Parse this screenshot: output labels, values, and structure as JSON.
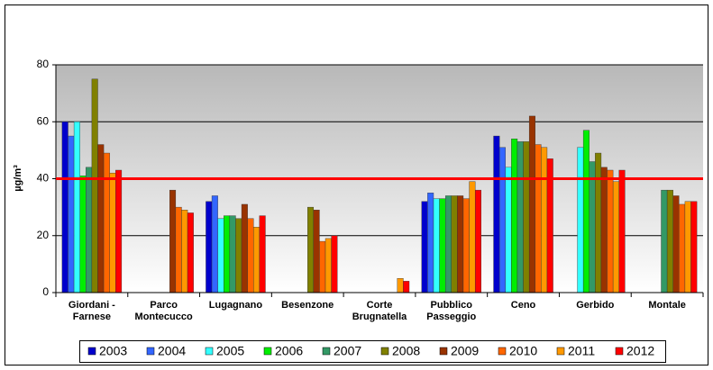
{
  "chart_data": {
    "type": "bar",
    "y_label": "µg/m³",
    "categories": [
      "Giordani -\nFarnese",
      "Parco\nMontecucco",
      "Lugagnano",
      "Besenzone",
      "Corte\nBrugnatella",
      "Pubblico\nPasseggio",
      "Ceno",
      "Gerbido",
      "Montale"
    ],
    "series": [
      {
        "name": "2003",
        "color": "#0000cc",
        "values": [
          60,
          null,
          32,
          null,
          null,
          32,
          55,
          null,
          null
        ]
      },
      {
        "name": "2004",
        "color": "#3366ff",
        "values": [
          55,
          null,
          34,
          null,
          null,
          35,
          51,
          null,
          null
        ]
      },
      {
        "name": "2005",
        "color": "#33ffff",
        "values": [
          60,
          null,
          26,
          null,
          null,
          33,
          44,
          51,
          null
        ]
      },
      {
        "name": "2006",
        "color": "#00ee00",
        "values": [
          41,
          null,
          27,
          null,
          null,
          33,
          54,
          57,
          null
        ]
      },
      {
        "name": "2007",
        "color": "#339966",
        "values": [
          44,
          null,
          27,
          null,
          null,
          34,
          53,
          46,
          36
        ]
      },
      {
        "name": "2008",
        "color": "#808000",
        "values": [
          75,
          null,
          26,
          30,
          null,
          34,
          53,
          49,
          36
        ]
      },
      {
        "name": "2009",
        "color": "#993300",
        "values": [
          52,
          36,
          31,
          29,
          null,
          34,
          62,
          44,
          34
        ]
      },
      {
        "name": "2010",
        "color": "#ff6600",
        "values": [
          49,
          30,
          26,
          18,
          null,
          33,
          52,
          43,
          31
        ]
      },
      {
        "name": "2011",
        "color": "#ff9900",
        "values": [
          42,
          29,
          23,
          19,
          5,
          39,
          51,
          39,
          32
        ]
      },
      {
        "name": "2012",
        "color": "#ff0000",
        "values": [
          43,
          28,
          27,
          20,
          4,
          36,
          47,
          43,
          32
        ]
      }
    ],
    "threshold": {
      "value": 40,
      "color": "#ff0000"
    },
    "ylim": [
      0,
      80
    ],
    "yticks": [
      0,
      20,
      40,
      60,
      80
    ],
    "grid": true,
    "legend": "bottom"
  }
}
